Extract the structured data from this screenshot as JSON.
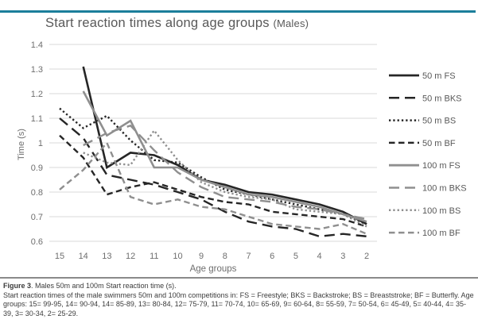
{
  "page": {
    "top_rule_color": "#1b7e9b"
  },
  "chart": {
    "title": "Start reaction times along age groups",
    "title_suffix": "(Males)"
  },
  "chart_data": {
    "type": "line",
    "title": "Start reaction times along age groups (Males)",
    "xlabel": "Age groups",
    "ylabel": "Time (s)",
    "ylim": [
      0.6,
      1.4
    ],
    "ytick_step": 0.1,
    "grid": "horizontal",
    "legend_position": "right",
    "categories": [
      "15",
      "14",
      "13",
      "12",
      "11",
      "10",
      "9",
      "8",
      "7",
      "6",
      "5",
      "4",
      "3",
      "2"
    ],
    "series": [
      {
        "name": "50 m FS",
        "color": "#262626",
        "dash": "solid",
        "values": [
          null,
          1.31,
          0.9,
          0.96,
          0.95,
          0.91,
          0.85,
          0.83,
          0.8,
          0.79,
          0.77,
          0.75,
          0.72,
          0.67
        ]
      },
      {
        "name": "50 m BKS",
        "color": "#262626",
        "dash": "longdash",
        "values": [
          1.1,
          1.02,
          0.87,
          0.85,
          0.83,
          0.8,
          0.77,
          0.72,
          0.68,
          0.66,
          0.65,
          0.62,
          0.63,
          0.62
        ]
      },
      {
        "name": "50 m BS",
        "color": "#262626",
        "dash": "dotted",
        "values": [
          1.14,
          1.06,
          1.11,
          1.01,
          0.93,
          0.92,
          0.86,
          0.81,
          0.79,
          0.77,
          0.75,
          0.73,
          0.71,
          0.67
        ]
      },
      {
        "name": "50 m BF",
        "color": "#262626",
        "dash": "dash",
        "values": [
          1.03,
          0.94,
          0.79,
          0.82,
          0.84,
          0.81,
          0.78,
          0.76,
          0.75,
          0.72,
          0.71,
          0.7,
          0.69,
          0.66
        ]
      },
      {
        "name": "100 m FS",
        "color": "#8f8f8f",
        "dash": "solid",
        "values": [
          null,
          1.21,
          1.03,
          1.09,
          0.9,
          0.9,
          0.85,
          0.82,
          0.79,
          0.78,
          0.76,
          0.74,
          0.71,
          0.68
        ]
      },
      {
        "name": "100 m BKS",
        "color": "#8f8f8f",
        "dash": "longdash",
        "values": [
          null,
          0.99,
          1.04,
          1.07,
          0.97,
          0.88,
          0.82,
          0.78,
          0.77,
          0.76,
          0.74,
          0.73,
          0.71,
          0.69
        ]
      },
      {
        "name": "100 m BS",
        "color": "#8f8f8f",
        "dash": "dotted",
        "values": [
          null,
          0.96,
          0.92,
          0.91,
          1.05,
          0.93,
          0.84,
          0.8,
          0.78,
          0.77,
          0.73,
          0.72,
          0.71,
          0.66
        ]
      },
      {
        "name": "100 m BF",
        "color": "#8f8f8f",
        "dash": "dash",
        "values": [
          0.81,
          0.89,
          1.0,
          0.78,
          0.75,
          0.77,
          0.74,
          0.73,
          0.7,
          0.67,
          0.66,
          0.65,
          0.67,
          0.63
        ]
      }
    ]
  },
  "caption": {
    "figure_label": "Figure 3",
    "figure_title": ". Males 50m and 100m Start reaction time (s).",
    "body": "Start reaction times of the male swimmers 50m and 100m competitions in: FS = Freestyle; BKS = Backstroke; BS = Breaststroke; BF = Butterfly. Age groups: 15= 99-95, 14= 90-94, 14= 85-89, 13= 80-84, 12= 75-79, 11= 70-74, 10= 65-69, 9= 60-64, 8= 55-59, 7= 50-54, 6= 45-49, 5= 40-44, 4= 35-39, 3= 30-34, 2= 25-29."
  }
}
